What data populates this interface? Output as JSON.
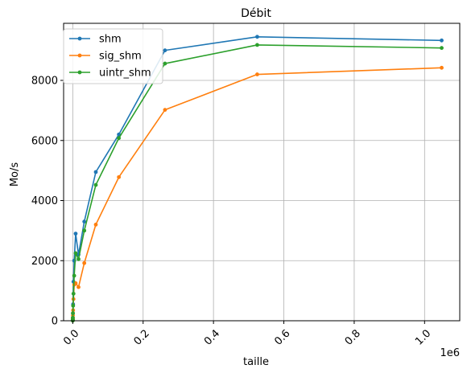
{
  "chart_data": {
    "type": "line",
    "title": "Débit",
    "xlabel": "taille",
    "ylabel": "Mo/s",
    "x_offset_label": "1e6",
    "xlim": [
      -0.026,
      1.1
    ],
    "ylim": [
      0,
      9900
    ],
    "x_ticks": [
      0.0,
      0.2,
      0.4,
      0.6,
      0.8,
      1.0
    ],
    "x_tick_labels": [
      "0.0",
      "0.2",
      "0.4",
      "0.6",
      "0.8",
      "1.0"
    ],
    "y_ticks": [
      0,
      2000,
      4000,
      6000,
      8000
    ],
    "y_tick_labels": [
      "0",
      "2000",
      "4000",
      "6000",
      "8000"
    ],
    "grid": true,
    "legend": "top-left",
    "x_multiplier": 1000000,
    "x": [
      16,
      32,
      64,
      128,
      256,
      512,
      1024,
      2048,
      4096,
      8192,
      16384,
      32768,
      65536,
      131072,
      262144,
      524288,
      1048576
    ],
    "series": [
      {
        "name": "shm",
        "color": "#1f77b4",
        "values": [
          5,
          10,
          20,
          40,
          100,
          250,
          550,
          1300,
          2000,
          2900,
          2200,
          3300,
          4950,
          6200,
          9000,
          9450,
          9330
        ]
      },
      {
        "name": "sig_shm",
        "color": "#ff7f0e",
        "values": [
          5,
          10,
          20,
          40,
          80,
          180,
          350,
          720,
          1200,
          1250,
          1120,
          1920,
          3200,
          4780,
          7020,
          8200,
          8420
        ]
      },
      {
        "name": "uintr_shm",
        "color": "#2ca02c",
        "values": [
          5,
          10,
          20,
          40,
          100,
          250,
          500,
          900,
          1500,
          2250,
          2050,
          3000,
          4520,
          6080,
          8560,
          9180,
          9080
        ]
      }
    ]
  }
}
